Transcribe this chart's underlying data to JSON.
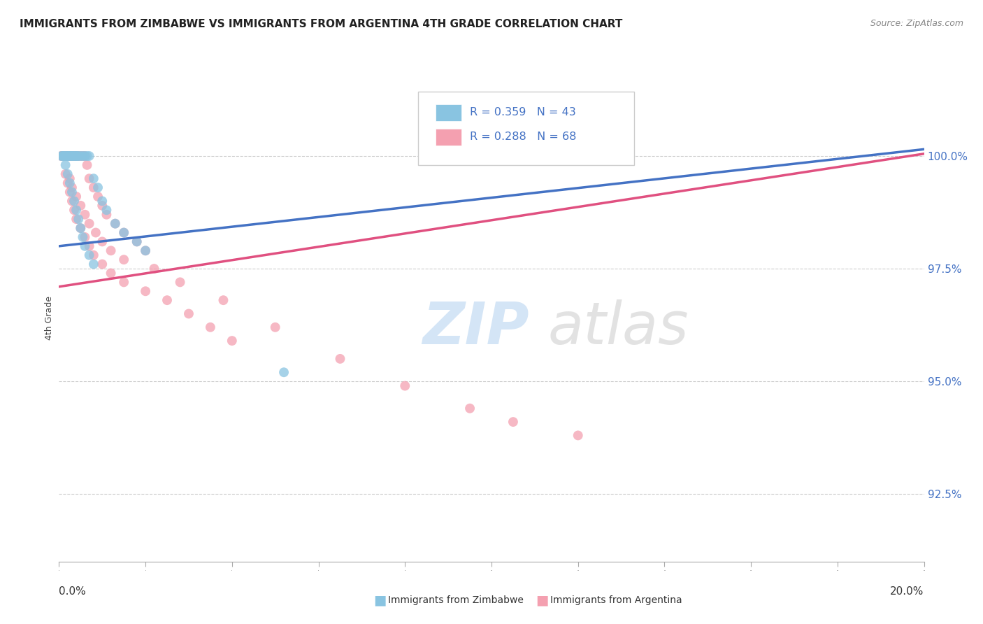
{
  "title": "IMMIGRANTS FROM ZIMBABWE VS IMMIGRANTS FROM ARGENTINA 4TH GRADE CORRELATION CHART",
  "source": "Source: ZipAtlas.com",
  "ylabel": "4th Grade",
  "yaxis_values": [
    92.5,
    95.0,
    97.5,
    100.0
  ],
  "xlim": [
    0.0,
    20.0
  ],
  "ylim": [
    91.0,
    101.8
  ],
  "zimbabwe_color": "#89c4e1",
  "argentina_color": "#f4a0b0",
  "zimbabwe_line_color": "#4472c4",
  "argentina_line_color": "#e05080",
  "zimbabwe_label": "Immigrants from Zimbabwe",
  "argentina_label": "Immigrants from Argentina",
  "legend_text_color": "#4472c4",
  "yaxis_tick_color": "#4472c4",
  "grid_color": "#cccccc",
  "zimbabwe_trendline": [
    0.0,
    98.0,
    20.0,
    100.15
  ],
  "argentina_trendline": [
    0.0,
    97.1,
    20.0,
    100.05
  ],
  "zimbabwe_scatter_x": [
    0.05,
    0.08,
    0.1,
    0.12,
    0.15,
    0.18,
    0.2,
    0.22,
    0.25,
    0.28,
    0.3,
    0.32,
    0.35,
    0.38,
    0.4,
    0.42,
    0.45,
    0.5,
    0.55,
    0.6,
    0.65,
    0.7,
    0.8,
    0.9,
    1.0,
    1.1,
    1.3,
    1.5,
    1.8,
    2.0,
    0.15,
    0.2,
    0.25,
    0.3,
    0.35,
    0.4,
    0.45,
    0.5,
    0.55,
    0.6,
    0.7,
    0.8,
    5.2
  ],
  "zimbabwe_scatter_y": [
    100.0,
    100.0,
    100.0,
    100.0,
    100.0,
    100.0,
    100.0,
    100.0,
    100.0,
    100.0,
    100.0,
    100.0,
    100.0,
    100.0,
    100.0,
    100.0,
    100.0,
    100.0,
    100.0,
    100.0,
    100.0,
    100.0,
    99.5,
    99.3,
    99.0,
    98.8,
    98.5,
    98.3,
    98.1,
    97.9,
    99.8,
    99.6,
    99.4,
    99.2,
    99.0,
    98.8,
    98.6,
    98.4,
    98.2,
    98.0,
    97.8,
    97.6,
    95.2
  ],
  "argentina_scatter_x": [
    0.05,
    0.08,
    0.1,
    0.12,
    0.15,
    0.18,
    0.2,
    0.22,
    0.25,
    0.28,
    0.3,
    0.32,
    0.35,
    0.38,
    0.4,
    0.42,
    0.45,
    0.5,
    0.55,
    0.6,
    0.65,
    0.7,
    0.8,
    0.9,
    1.0,
    1.1,
    1.3,
    1.5,
    1.8,
    2.0,
    0.15,
    0.2,
    0.25,
    0.3,
    0.35,
    0.4,
    0.5,
    0.6,
    0.7,
    0.8,
    1.0,
    1.2,
    1.5,
    2.0,
    2.5,
    3.0,
    3.5,
    4.0,
    0.25,
    0.3,
    0.4,
    0.5,
    0.6,
    0.7,
    0.85,
    1.0,
    1.2,
    1.5,
    2.2,
    2.8,
    3.8,
    5.0,
    6.5,
    8.0,
    9.5,
    10.5,
    12.0
  ],
  "argentina_scatter_y": [
    100.0,
    100.0,
    100.0,
    100.0,
    100.0,
    100.0,
    100.0,
    100.0,
    100.0,
    100.0,
    100.0,
    100.0,
    100.0,
    100.0,
    100.0,
    100.0,
    100.0,
    100.0,
    100.0,
    100.0,
    99.8,
    99.5,
    99.3,
    99.1,
    98.9,
    98.7,
    98.5,
    98.3,
    98.1,
    97.9,
    99.6,
    99.4,
    99.2,
    99.0,
    98.8,
    98.6,
    98.4,
    98.2,
    98.0,
    97.8,
    97.6,
    97.4,
    97.2,
    97.0,
    96.8,
    96.5,
    96.2,
    95.9,
    99.5,
    99.3,
    99.1,
    98.9,
    98.7,
    98.5,
    98.3,
    98.1,
    97.9,
    97.7,
    97.5,
    97.2,
    96.8,
    96.2,
    95.5,
    94.9,
    94.4,
    94.1,
    93.8
  ]
}
